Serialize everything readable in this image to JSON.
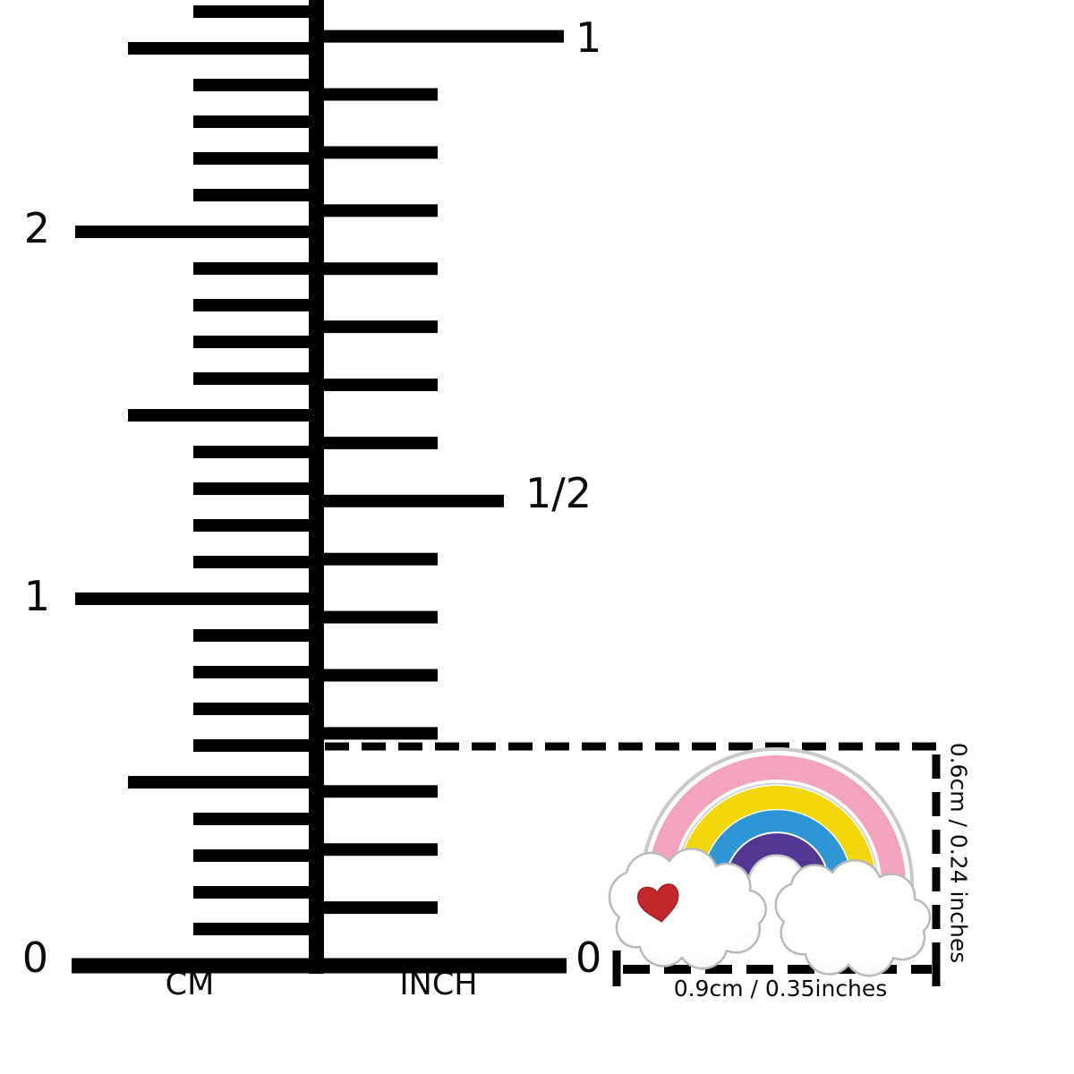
{
  "figure": {
    "type": "product-size-chart",
    "background": "#FFFFFF",
    "line_color": "#000000"
  },
  "ruler": {
    "cm": {
      "unit_label": "CM",
      "labels": [
        {
          "value": "0"
        },
        {
          "value": "1"
        },
        {
          "value": "2"
        }
      ],
      "millimeter_ticks_shown": 26
    },
    "inch": {
      "unit_label": "INCH",
      "labels": [
        {
          "value": "0"
        },
        {
          "value": "1/2"
        },
        {
          "value": "1"
        }
      ],
      "sixteenth_ticks_shown": 16
    }
  },
  "measurements": {
    "width_label": "0.9cm / 0.35inches",
    "height_label": "0.6cm / 0.24 inches"
  },
  "charm": {
    "description": "silver rainbow charm with pink, yellow, blue and purple arcs, two white clouds and a red heart",
    "colors": {
      "pink": "#F3A3C0",
      "yellow": "#F2D70B",
      "blue": "#2E96D5",
      "purple": "#513792",
      "heart_red": "#C1272D",
      "heart_edge": "#A51E24",
      "silver": "#C9C9C9",
      "cloud_outline": "#B9B9B9",
      "cloud_fill": "#FFFFFF"
    }
  }
}
